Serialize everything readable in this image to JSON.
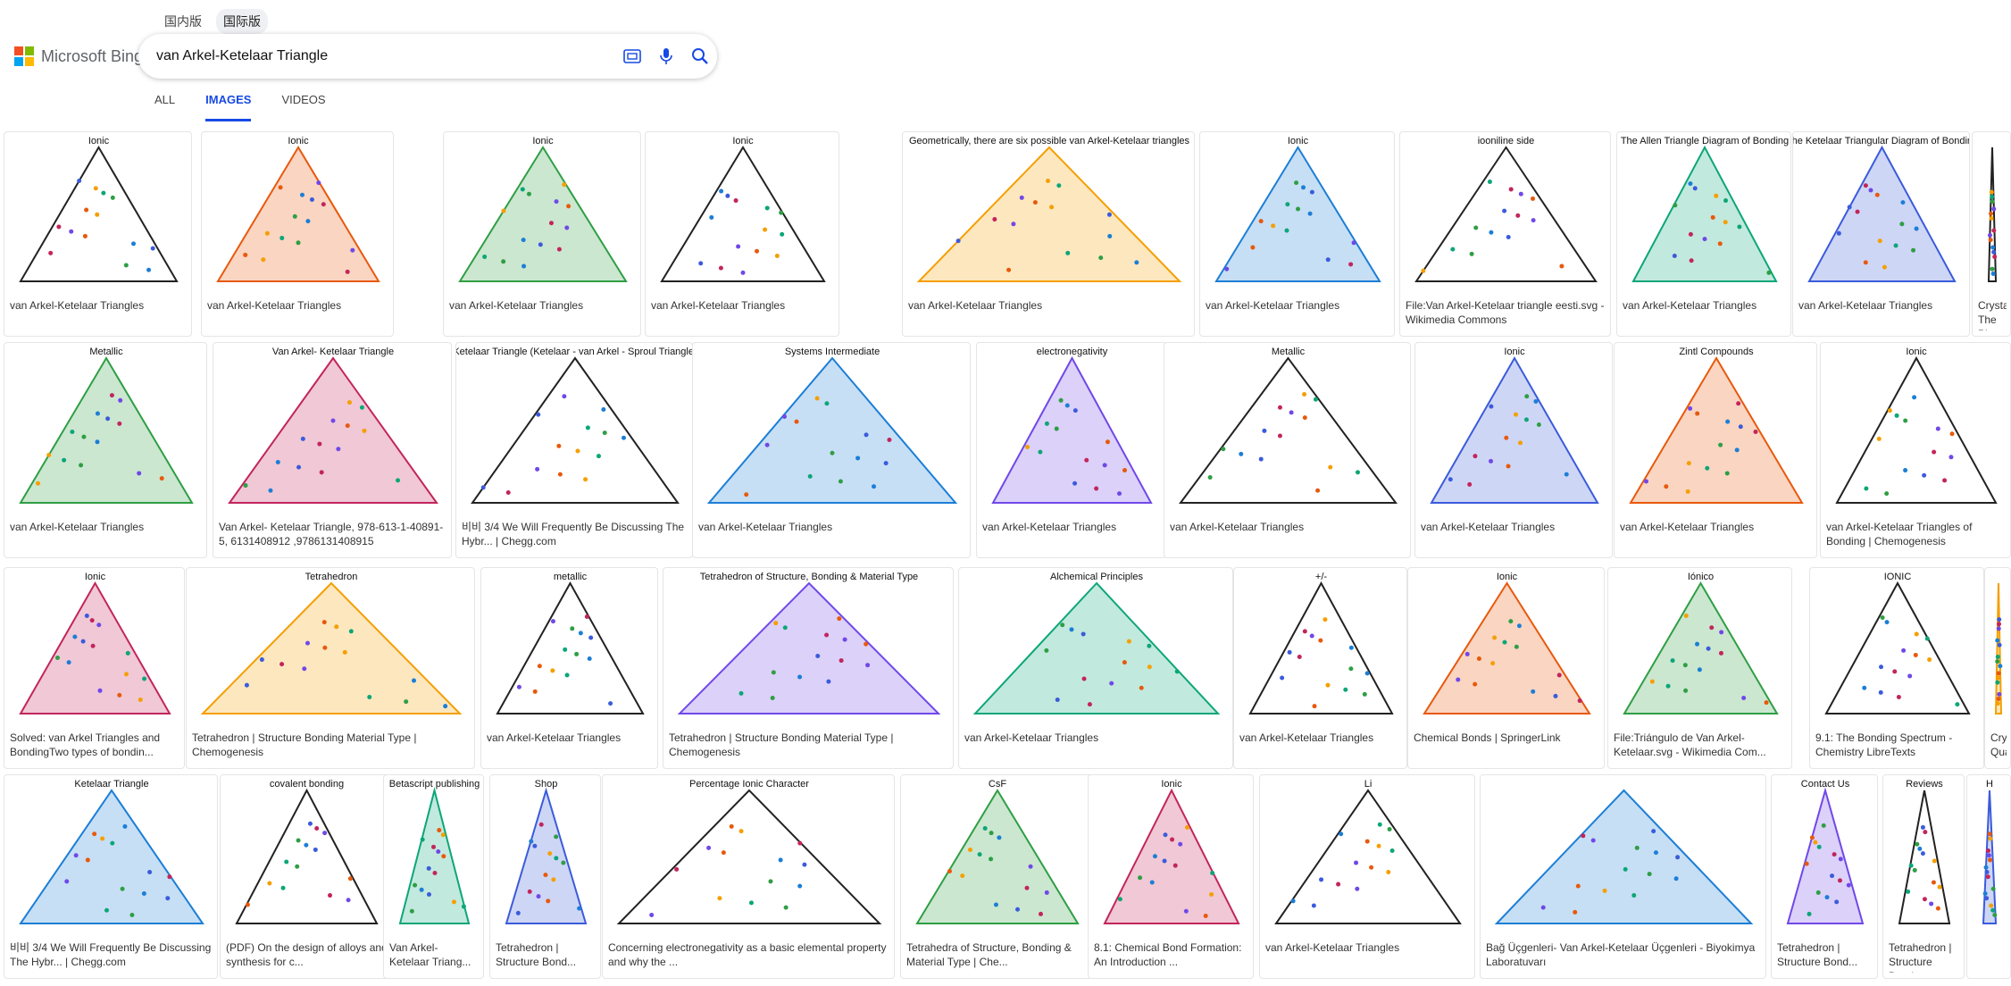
{
  "region_tabs": [
    "国内版",
    "国际版"
  ],
  "logo_text": "Microsoft Bing",
  "query": "van Arkel-Ketelaar Triangle",
  "nav_tabs": [
    "ALL",
    "IMAGES",
    "VIDEOS"
  ],
  "results": [
    {
      "caption": "van Arkel-Ketelaar Triangles",
      "thumb_text": "Ionic"
    },
    {
      "caption": "van Arkel-Ketelaar Triangles",
      "thumb_text": "Ionic"
    },
    {
      "caption": "van Arkel-Ketelaar Triangles",
      "thumb_text": "Ionic"
    },
    {
      "caption": "van Arkel-Ketelaar Triangles",
      "thumb_text": "Ionic"
    },
    {
      "caption": "van Arkel-Ketelaar Triangles",
      "thumb_text": "Geometrically, there are six possible van Arkel-Ketelaar triangles"
    },
    {
      "caption": "van Arkel-Ketelaar Triangles",
      "thumb_text": "Ionic"
    },
    {
      "caption": "File:Van Arkel-Ketelaar triangle eesti.svg - Wikimedia Commons",
      "thumb_text": "iooniline side"
    },
    {
      "caption": "van Arkel-Ketelaar Triangles",
      "thumb_text": "The Allen Triangle Diagram of Bonding"
    },
    {
      "caption": "van Arkel-Ketelaar Triangles",
      "thumb_text": "The Ketelaar Triangular Diagram of Bonding"
    },
    {
      "caption": "Crystals The Phys",
      "thumb_text": ""
    },
    {
      "caption": "van Arkel-Ketelaar Triangles",
      "thumb_text": "Metallic"
    },
    {
      "caption": "Van Arkel- Ketelaar Triangle, 978-613-1-40891-5, 6131408912 ,9786131408915",
      "thumb_text": "Van Arkel- Ketelaar Triangle"
    },
    {
      "caption": "비비 3/4 We Will Frequently Be Discussing The Hybr... | Chegg.com",
      "thumb_text": "Ketelaar Triangle (Ketelaar - van Arkel - Sproul Triangle)"
    },
    {
      "caption": "van Arkel-Ketelaar Triangles",
      "thumb_text": "Systems Intermediate"
    },
    {
      "caption": "van Arkel-Ketelaar Triangles",
      "thumb_text": "electronegativity"
    },
    {
      "caption": "van Arkel-Ketelaar Triangles",
      "thumb_text": "Metallic"
    },
    {
      "caption": "van Arkel-Ketelaar Triangles",
      "thumb_text": "Ionic"
    },
    {
      "caption": "van Arkel-Ketelaar Triangles",
      "thumb_text": "Zintl Compounds"
    },
    {
      "caption": "van Arkel-Ketelaar Triangles of Bonding | Chemogenesis",
      "thumb_text": "Ionic"
    },
    {
      "caption": "Solved: van Arkel Triangles and BondingTwo types of bondin...",
      "thumb_text": "Ionic"
    },
    {
      "caption": "Tetrahedron | Structure Bonding Material Type | Chemogenesis",
      "thumb_text": "Tetrahedron"
    },
    {
      "caption": "van Arkel-Ketelaar Triangles",
      "thumb_text": "metallic"
    },
    {
      "caption": "Tetrahedron | Structure Bonding Material Type | Chemogenesis",
      "thumb_text": "Tetrahedron of Structure, Bonding & Material Type"
    },
    {
      "caption": "van Arkel-Ketelaar Triangles",
      "thumb_text": "Alchemical Principles"
    },
    {
      "caption": "van Arkel-Ketelaar Triangles",
      "thumb_text": "+/-"
    },
    {
      "caption": "Chemical Bonds | SpringerLink",
      "thumb_text": "Ionic"
    },
    {
      "caption": "File:Triángulo de Van Arkel-Ketelaar.svg - Wikimedia Com...",
      "thumb_text": "Iónico"
    },
    {
      "caption": "9.1: The Bonding Spectrum - Chemistry LibreTexts",
      "thumb_text": "IONIC"
    },
    {
      "caption": "Crys Qua",
      "thumb_text": ""
    },
    {
      "caption": "비비 3/4 We Will Frequently Be Discussing The Hybr... | Chegg.com",
      "thumb_text": "Ketelaar Triangle"
    },
    {
      "caption": "(PDF) On the design of alloys and synthesis for c...",
      "thumb_text": "covalent bonding"
    },
    {
      "caption": "Van Arkel- Ketelaar Triang...",
      "thumb_text": "Betascript publishing"
    },
    {
      "caption": "Tetrahedron | Structure Bond...",
      "thumb_text": "Shop"
    },
    {
      "caption": "Concerning electronegativity as a basic elemental property and why the ...",
      "thumb_text": "Percentage Ionic Character"
    },
    {
      "caption": "Tetrahedra of Structure, Bonding & Material Type | Che...",
      "thumb_text": "CsF"
    },
    {
      "caption": "8.1: Chemical Bond Formation: An Introduction ...",
      "thumb_text": "Ionic"
    },
    {
      "caption": "van Arkel-Ketelaar Triangles",
      "thumb_text": "Li"
    },
    {
      "caption": "Bağ Üçgenleri- Van Arkel-Ketelaar Üçgenleri - Biyokimya Laboratuvarı",
      "thumb_text": ""
    },
    {
      "caption": "Tetrahedron | Structure Bond...",
      "thumb_text": "Contact Us"
    },
    {
      "caption": "Tetrahedron | Structure Bond...",
      "thumb_text": "Reviews"
    },
    {
      "caption": "",
      "thumb_text": "H"
    }
  ]
}
